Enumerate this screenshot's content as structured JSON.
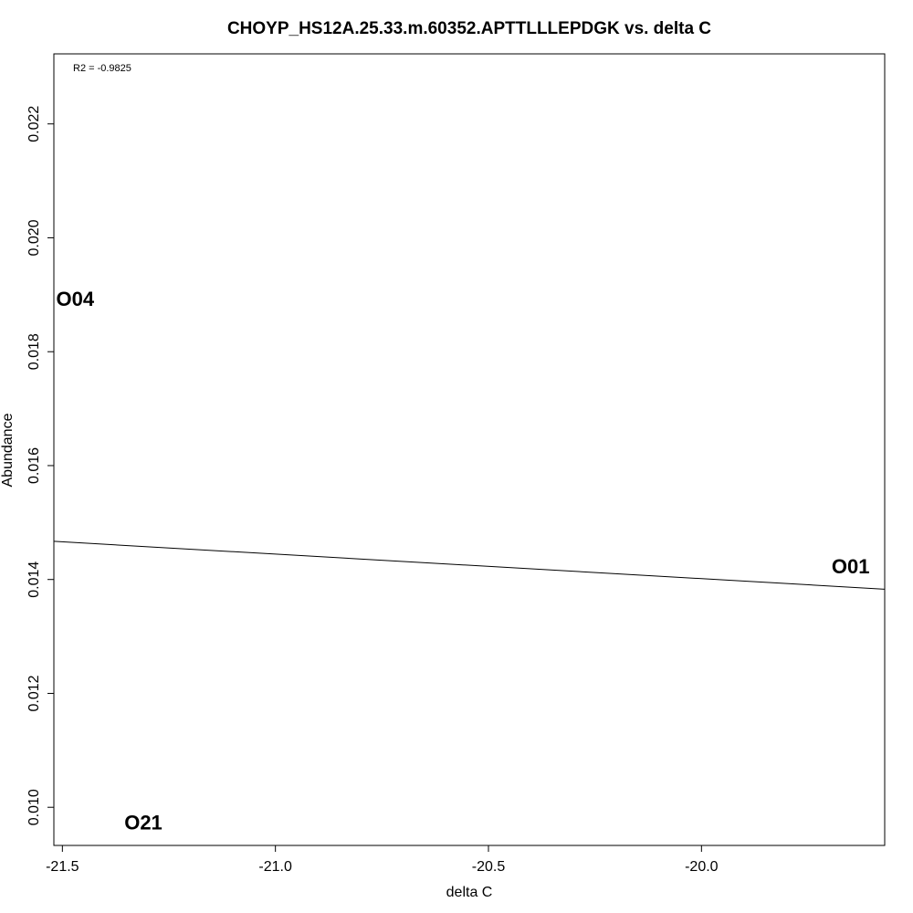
{
  "chart_data": {
    "type": "scatter",
    "title": "CHOYP_HS12A.25.33.m.60352.APTTLLLEPDGK vs. delta C",
    "xlabel": "delta C",
    "ylabel": "Abundance",
    "annotation": "R2 = -0.9825",
    "xlim": [
      -21.52,
      -19.57
    ],
    "ylim": [
      0.00933,
      0.02323
    ],
    "x_ticks": [
      -21.5,
      -21.0,
      -20.5,
      -20.0
    ],
    "x_tick_labels": [
      "-21.5",
      "-21.0",
      "-20.5",
      "-20.0"
    ],
    "y_ticks": [
      0.01,
      0.012,
      0.014,
      0.016,
      0.018,
      0.02,
      0.022
    ],
    "y_tick_labels": [
      "0.010",
      "0.012",
      "0.014",
      "0.016",
      "0.018",
      "0.020",
      "0.022"
    ],
    "points": [
      {
        "label": "O04",
        "x": -21.47,
        "y": 0.0189
      },
      {
        "label": "O21",
        "x": -21.31,
        "y": 0.0097
      },
      {
        "label": "O01",
        "x": -19.65,
        "y": 0.0142
      }
    ],
    "fit_line": {
      "x": [
        -21.52,
        -19.57
      ],
      "y": [
        0.01467,
        0.01383
      ]
    },
    "grid": false,
    "legend": "none"
  }
}
